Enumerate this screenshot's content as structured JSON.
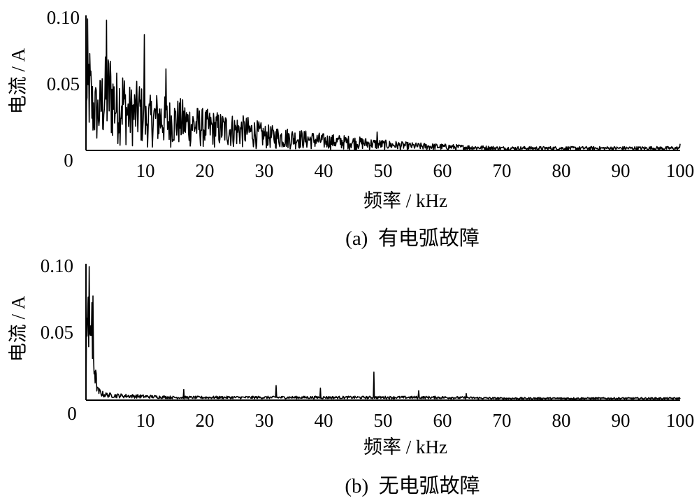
{
  "chart_data": [
    {
      "type": "line",
      "caption": "(a)  有电弧故障",
      "xlabel": "频率 / kHz",
      "ylabel": "电流 / A",
      "xlim": [
        0,
        100
      ],
      "ylim": [
        0,
        0.1
      ],
      "xticks": [
        "10",
        "20",
        "30",
        "40",
        "50",
        "60",
        "70",
        "80",
        "90",
        "100"
      ],
      "yticks": [
        "0.10",
        "0.05"
      ],
      "origin_label": "0",
      "grid": false,
      "series": [
        {
          "color": "#000000",
          "envelope": {
            "x": [
              0.2,
              0.5,
              1,
              2,
              3,
              4,
              5,
              6,
              7,
              8,
              9,
              10,
              12,
              14,
              16,
              18,
              20,
              22,
              25,
              28,
              30,
              33,
              36,
              40,
              45,
              50,
              55,
              60,
              70,
              80,
              90,
              100
            ],
            "y": [
              0.1,
              0.09,
              0.06,
              0.05,
              0.07,
              0.08,
              0.06,
              0.07,
              0.05,
              0.05,
              0.055,
              0.04,
              0.045,
              0.04,
              0.04,
              0.035,
              0.032,
              0.03,
              0.028,
              0.025,
              0.02,
              0.018,
              0.016,
              0.013,
              0.011,
              0.008,
              0.006,
              0.005,
              0.003,
              0.003,
              0.003,
              0.003
            ]
          },
          "peaks": [
            {
              "x": 0.3,
              "y": 0.1
            },
            {
              "x": 3.5,
              "y": 0.099
            },
            {
              "x": 9.8,
              "y": 0.088
            },
            {
              "x": 13.5,
              "y": 0.062
            },
            {
              "x": 49,
              "y": 0.014
            },
            {
              "x": 100,
              "y": 0.005
            }
          ]
        }
      ]
    },
    {
      "type": "line",
      "caption": "(b)  无电弧故障",
      "xlabel": "频率 / kHz",
      "ylabel": "电流 / A",
      "xlim": [
        0,
        100
      ],
      "ylim": [
        0,
        0.1
      ],
      "xticks": [
        "10",
        "20",
        "30",
        "40",
        "50",
        "60",
        "70",
        "80",
        "90",
        "100"
      ],
      "yticks": [
        "0.10",
        "0.05"
      ],
      "origin_label": "0",
      "grid": false,
      "series": [
        {
          "color": "#000000",
          "envelope": {
            "x": [
              0.5,
              1,
              1.5,
              2,
              3,
              5,
              10,
              15,
              20,
              30,
              40,
              50,
              60,
              70,
              80,
              90,
              100
            ],
            "y": [
              0.1,
              0.075,
              0.03,
              0.01,
              0.006,
              0.005,
              0.004,
              0.003,
              0.003,
              0.003,
              0.003,
              0.003,
              0.003,
              0.002,
              0.002,
              0.002,
              0.002
            ]
          },
          "peaks": [
            {
              "x": 0.5,
              "y": 0.1
            },
            {
              "x": 1.2,
              "y": 0.078
            },
            {
              "x": 16.5,
              "y": 0.008
            },
            {
              "x": 32,
              "y": 0.011
            },
            {
              "x": 39.5,
              "y": 0.009
            },
            {
              "x": 48.5,
              "y": 0.021
            },
            {
              "x": 56,
              "y": 0.007
            },
            {
              "x": 64,
              "y": 0.005
            }
          ]
        }
      ]
    }
  ]
}
